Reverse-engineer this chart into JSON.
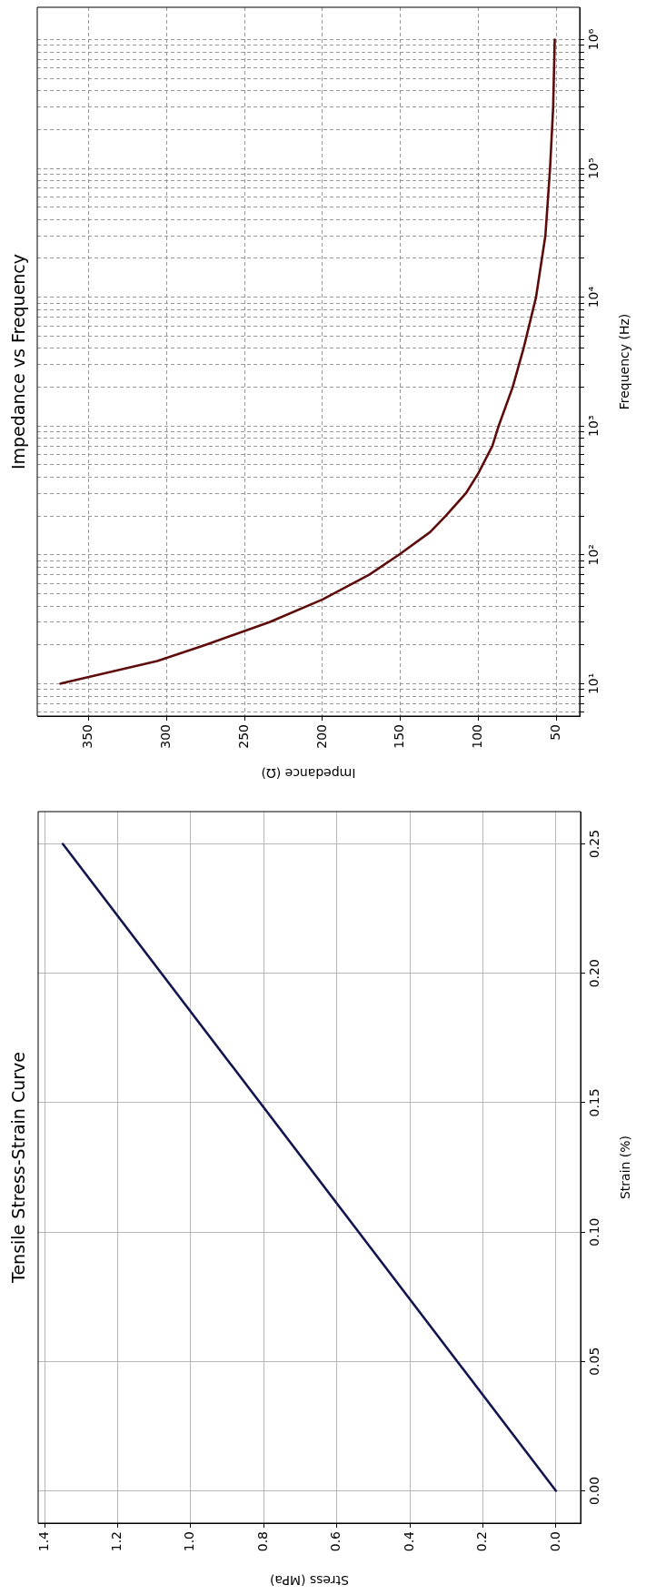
{
  "chart_data": [
    {
      "type": "line",
      "title": "Impedance vs Frequency",
      "xlabel": "Impedance (Ω)",
      "ylabel": "Frequency (Hz)",
      "log": "y",
      "x": [
        368,
        306,
        275,
        234,
        200,
        170,
        151,
        131,
        121,
        108,
        100,
        91,
        87,
        78,
        71,
        63,
        57,
        54,
        52,
        51
      ],
      "series": [
        {
          "color": "#5e0b0b",
          "values": [
            10,
            15,
            20,
            30,
            45,
            70,
            100,
            150,
            200,
            300,
            430,
            700,
            1000,
            2000,
            4000,
            10000,
            30000,
            100000,
            300000,
            1000000
          ]
        }
      ],
      "xlim": [
        383,
        35
      ],
      "xticks": [
        350,
        300,
        250,
        200,
        150,
        100,
        50
      ],
      "ylim": [
        5.6,
        1780000
      ],
      "yticks": [
        {
          "value": 6,
          "label": null
        },
        {
          "value": 7,
          "label": null
        },
        {
          "value": 8,
          "label": null
        },
        {
          "value": 9,
          "label": null
        },
        {
          "value": 10,
          "label": "10¹"
        },
        {
          "value": 20,
          "label": null
        },
        {
          "value": 30,
          "label": null
        },
        {
          "value": 40,
          "label": null
        },
        {
          "value": 50,
          "label": null
        },
        {
          "value": 60,
          "label": null
        },
        {
          "value": 70,
          "label": null
        },
        {
          "value": 80,
          "label": null
        },
        {
          "value": 90,
          "label": null
        },
        {
          "value": 100,
          "label": "10²"
        },
        {
          "value": 200,
          "label": null
        },
        {
          "value": 300,
          "label": null
        },
        {
          "value": 400,
          "label": null
        },
        {
          "value": 500,
          "label": null
        },
        {
          "value": 600,
          "label": null
        },
        {
          "value": 700,
          "label": null
        },
        {
          "value": 800,
          "label": null
        },
        {
          "value": 900,
          "label": null
        },
        {
          "value": 1000,
          "label": "10³"
        },
        {
          "value": 2000,
          "label": null
        },
        {
          "value": 3000,
          "label": null
        },
        {
          "value": 4000,
          "label": null
        },
        {
          "value": 5000,
          "label": null
        },
        {
          "value": 6000,
          "label": null
        },
        {
          "value": 7000,
          "label": null
        },
        {
          "value": 8000,
          "label": null
        },
        {
          "value": 9000,
          "label": null
        },
        {
          "value": 10000,
          "label": "10⁴"
        },
        {
          "value": 20000,
          "label": null
        },
        {
          "value": 30000,
          "label": null
        },
        {
          "value": 40000,
          "label": null
        },
        {
          "value": 50000,
          "label": null
        },
        {
          "value": 60000,
          "label": null
        },
        {
          "value": 70000,
          "label": null
        },
        {
          "value": 80000,
          "label": null
        },
        {
          "value": 90000,
          "label": null
        },
        {
          "value": 100000,
          "label": "10⁵"
        },
        {
          "value": 200000,
          "label": null
        },
        {
          "value": 300000,
          "label": null
        },
        {
          "value": 400000,
          "label": null
        },
        {
          "value": 500000,
          "label": null
        },
        {
          "value": 600000,
          "label": null
        },
        {
          "value": 700000,
          "label": null
        },
        {
          "value": 800000,
          "label": null
        },
        {
          "value": 900000,
          "label": null
        },
        {
          "value": 1000000,
          "label": "10⁶"
        }
      ],
      "grid": true
    },
    {
      "type": "line",
      "title": "Tensile Stress-Strain Curve",
      "xlabel": "Stress (MPa)",
      "ylabel": "Strain (%)",
      "x": [
        0,
        1.35
      ],
      "series": [
        {
          "color": "#15154f",
          "values": [
            0,
            0.25
          ]
        }
      ],
      "xlim": [
        1.4175,
        -0.0675
      ],
      "xticks": [
        1.4,
        1.2,
        {
          "value": 1,
          "label": "1.0"
        },
        0.8,
        0.6,
        0.4,
        0.2,
        {
          "value": 0,
          "label": "0.0"
        }
      ],
      "ylim": [
        -0.0125,
        0.2625
      ],
      "yticks": [
        {
          "value": 0,
          "label": "0.00"
        },
        0.05,
        {
          "value": 0.1,
          "label": "0.10"
        },
        0.15,
        {
          "value": 0.2,
          "label": "0.20"
        },
        0.25
      ],
      "grid": true
    }
  ]
}
